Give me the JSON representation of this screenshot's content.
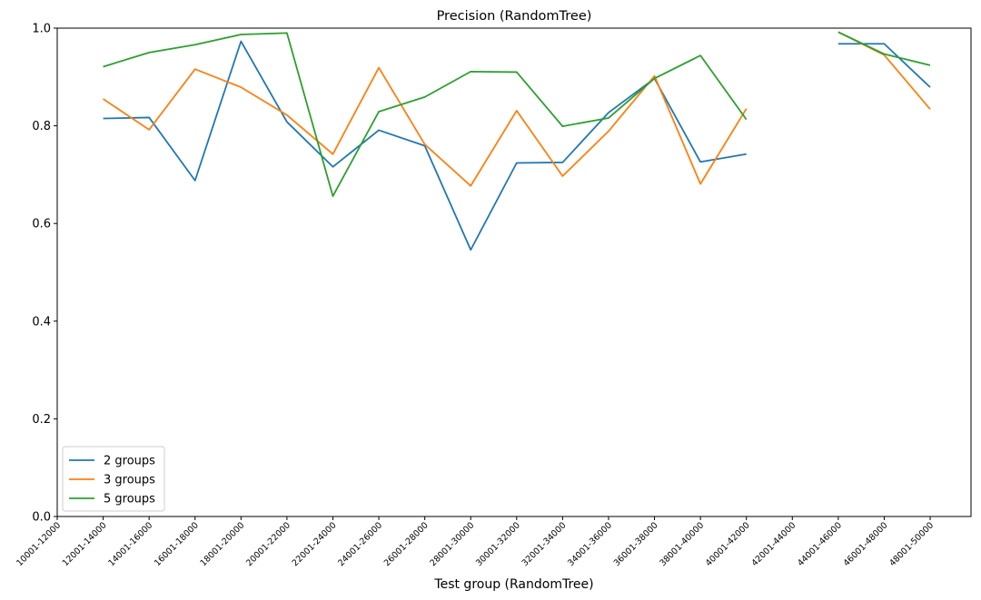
{
  "chart_data": {
    "type": "line",
    "title": "Precision (RandomTree)",
    "xlabel": "Test group (RandomTree)",
    "ylabel": "",
    "ylim": [
      0.0,
      1.0
    ],
    "yticks": [
      "0.0",
      "0.2",
      "0.4",
      "0.6",
      "0.8",
      "1.0"
    ],
    "grid": false,
    "legend_position": "lower-left",
    "categories": [
      "10001-12000",
      "12001-14000",
      "14001-16000",
      "16001-18000",
      "18001-20000",
      "20001-22000",
      "22001-24000",
      "24001-26000",
      "26001-28000",
      "28001-30000",
      "30001-32000",
      "32001-34000",
      "34001-36000",
      "36001-38000",
      "38001-40000",
      "40001-42000",
      "42001-44000",
      "44001-46000",
      "46001-48000",
      "48001-50000"
    ],
    "series": [
      {
        "name": "2 groups",
        "color": "#1f77b4",
        "values": [
          null,
          0.815,
          0.817,
          0.688,
          0.973,
          0.808,
          0.716,
          0.791,
          0.759,
          0.546,
          0.724,
          0.725,
          0.827,
          0.897,
          0.726,
          0.742,
          null,
          0.968,
          0.968,
          0.879
        ]
      },
      {
        "name": "3 groups",
        "color": "#ff7f0e",
        "values": [
          null,
          0.855,
          0.792,
          0.916,
          0.879,
          0.822,
          0.742,
          0.919,
          0.762,
          0.677,
          0.831,
          0.697,
          0.789,
          0.902,
          0.681,
          0.835,
          null,
          0.992,
          0.945,
          0.834
        ]
      },
      {
        "name": "5 groups",
        "color": "#2ca02c",
        "values": [
          null,
          0.921,
          0.95,
          0.966,
          0.987,
          0.99,
          0.656,
          0.829,
          0.859,
          0.911,
          0.91,
          0.799,
          0.816,
          0.897,
          0.944,
          0.813,
          null,
          0.992,
          0.947,
          0.924
        ]
      }
    ]
  }
}
